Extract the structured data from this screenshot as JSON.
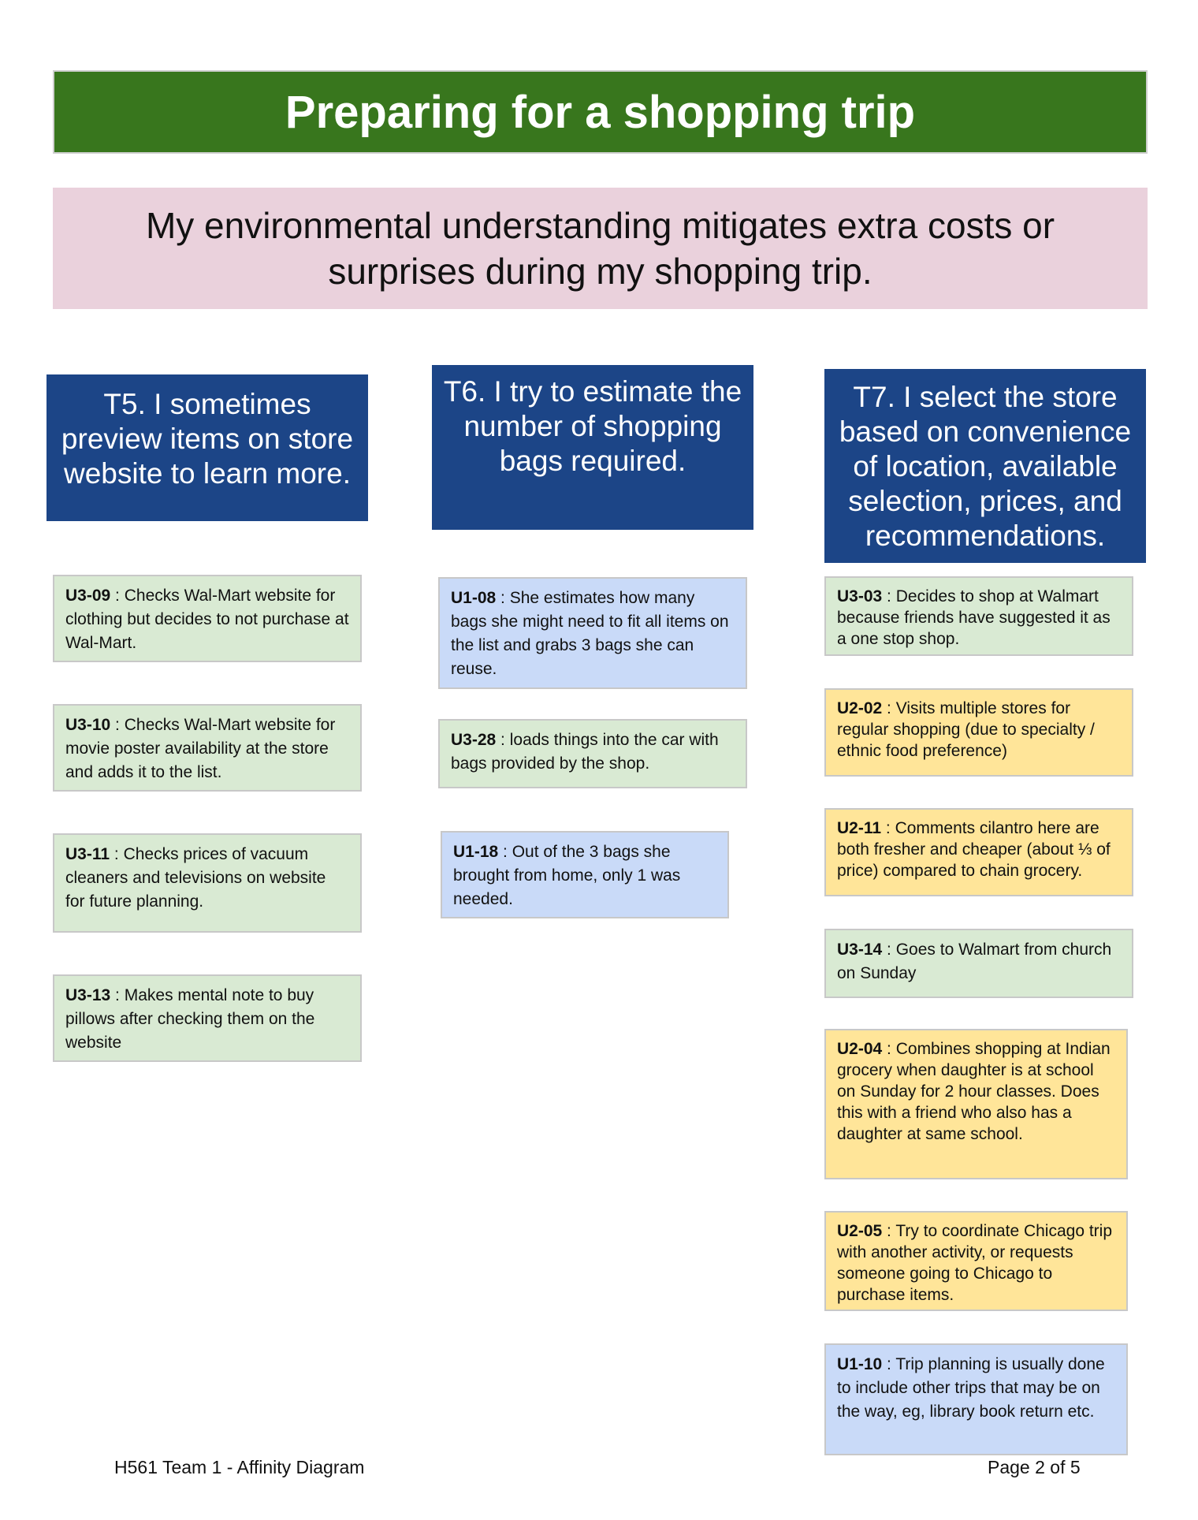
{
  "title": "Preparing for a shopping trip",
  "insight": "My environmental understanding mitigates extra costs or surprises during my shopping trip.",
  "themes": [
    {
      "label": "T5. I sometimes preview items on store website to learn more.",
      "notes": [
        {
          "code": "U3-09",
          "sep": " :  ",
          "text": "Checks Wal-Mart website for clothing but decides to not purchase at Wal-Mart.",
          "color": "green"
        },
        {
          "code": "U3-10",
          "sep": " :  ",
          "text": "Checks Wal-Mart website for movie poster availability at the store and adds it to the list.",
          "color": "green"
        },
        {
          "code": "U3-11",
          "sep": " :  ",
          "text": "Checks prices of vacuum cleaners and televisions on website for future planning.",
          "color": "green"
        },
        {
          "code": "U3-13",
          "sep": " :  ",
          "text": "Makes mental note to buy pillows after checking them on the website",
          "color": "green"
        }
      ]
    },
    {
      "label": "T6. I try to estimate the number of shopping bags required.",
      "notes": [
        {
          "code": "U1-08",
          "sep": " : ",
          "text": "She estimates how many bags she might need to fit all items on the list and grabs 3 bags she can reuse.",
          "color": "blue"
        },
        {
          "code": "U3-28",
          "sep": " :  ",
          "text": "loads things into the car with bags provided by the shop.",
          "color": "green"
        },
        {
          "code": "U1-18",
          "sep": " : ",
          "text": "Out of the 3 bags she brought from home, only 1 was needed.",
          "color": "blue"
        }
      ]
    },
    {
      "label": "T7. I select the store based on convenience of location, available selection, prices, and recommendations.",
      "notes": [
        {
          "code": "U3-03",
          "sep": " : ",
          "text": "Decides to shop at Walmart because friends have suggested it as a one stop shop.",
          "color": "green"
        },
        {
          "code": "U2-02",
          "sep": " : ",
          "text": "Visits multiple stores for regular shopping (due to specialty / ethnic food preference)",
          "color": "yellow"
        },
        {
          "code": "U2-11",
          "sep": " : ",
          "text": "Comments cilantro here are both fresher and cheaper (about ⅓ of price) compared to chain grocery.",
          "color": "yellow"
        },
        {
          "code": "U3-14",
          "sep": " :  ",
          "text": "Goes to Walmart from church on Sunday",
          "color": "green"
        },
        {
          "code": "U2-04",
          "sep": " : ",
          "text": "Combines shopping at Indian grocery when daughter is at school on Sunday for 2 hour classes. Does this with a friend who also has a daughter at same school.",
          "color": "yellow"
        },
        {
          "code": "U2-05",
          "sep": " : ",
          "text": "Try to coordinate Chicago trip with another activity, or requests someone going to Chicago to purchase items.",
          "color": "yellow"
        },
        {
          "code": "U1-10",
          "sep": " : ",
          "text": "Trip planning is usually done to include other trips that may be on the way, eg, library book return etc.",
          "color": "blue"
        }
      ]
    }
  ],
  "footer": {
    "left": "H561 Team 1 - Affinity Diagram",
    "right": "Page 2 of 5"
  },
  "colors": {
    "banner": "#38761d",
    "insight": "#ead1dc",
    "theme": "#1c4587",
    "green": "#d9ead3",
    "blue": "#c9daf8",
    "yellow": "#ffe599"
  }
}
